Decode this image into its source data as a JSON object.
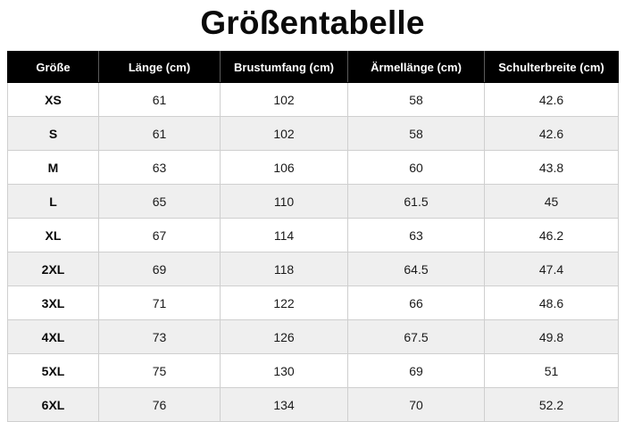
{
  "title": "Größentabelle",
  "table": {
    "headers": [
      "Größe",
      "Länge (cm)",
      "Brustumfang (cm)",
      "Ärmellänge (cm)",
      "Schulterbreite (cm)"
    ],
    "rows": [
      [
        "XS",
        "61",
        "102",
        "58",
        "42.6"
      ],
      [
        "S",
        "61",
        "102",
        "58",
        "42.6"
      ],
      [
        "M",
        "63",
        "106",
        "60",
        "43.8"
      ],
      [
        "L",
        "65",
        "110",
        "61.5",
        "45"
      ],
      [
        "XL",
        "67",
        "114",
        "63",
        "46.2"
      ],
      [
        "2XL",
        "69",
        "118",
        "64.5",
        "47.4"
      ],
      [
        "3XL",
        "71",
        "122",
        "66",
        "48.6"
      ],
      [
        "4XL",
        "73",
        "126",
        "67.5",
        "49.8"
      ],
      [
        "5XL",
        "75",
        "130",
        "69",
        "51"
      ],
      [
        "6XL",
        "76",
        "134",
        "70",
        "52.2"
      ]
    ]
  },
  "colors": {
    "header_background": "#000000",
    "header_text": "#ffffff",
    "row_stripe": "#efefef",
    "row_plain": "#ffffff"
  }
}
